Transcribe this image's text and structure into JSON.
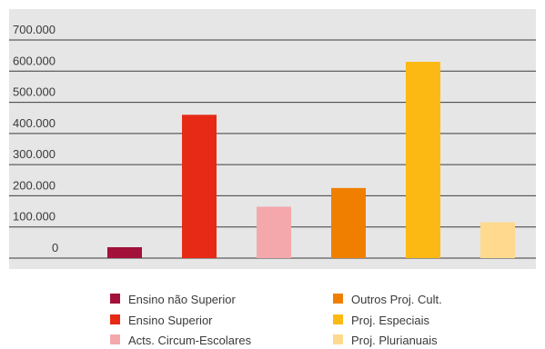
{
  "chart_data": {
    "type": "bar",
    "categories": [
      "Ensino não Superior",
      "Ensino Superior",
      "Acts. Circum-Escolares",
      "Outros Proj. Cult.",
      "Proj. Especiais",
      "Proj. Plurianuais"
    ],
    "values": [
      35000,
      460000,
      165000,
      225000,
      630000,
      115000
    ],
    "colors": [
      "#a3103a",
      "#e62a16",
      "#f5a8ac",
      "#f07f00",
      "#fdb913",
      "#fed98e"
    ],
    "y_ticks": [
      "0",
      "100.000",
      "200.000",
      "300.000",
      "400.000",
      "500.000",
      "600.000",
      "700.000"
    ],
    "ylim": [
      0,
      700000
    ],
    "grid": true,
    "legend": {
      "placement": "bottom",
      "items": [
        "Ensino não Superior",
        "Ensino Superior",
        "Acts. Circum-Escolares",
        "Outros Proj. Cult.",
        "Proj. Especiais",
        "Proj. Plurianuais"
      ]
    },
    "background_color": "#e6e6e6",
    "title": "",
    "xlabel": "",
    "ylabel": ""
  }
}
